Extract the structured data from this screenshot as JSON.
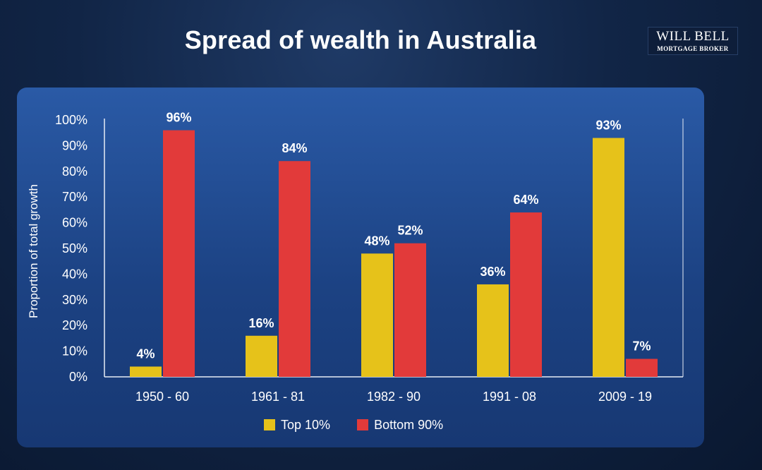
{
  "title": "Spread of wealth in Australia",
  "logo": {
    "line1": "WILL BELL",
    "line2": "MORTGAGE BROKER"
  },
  "colors": {
    "top10": "#e6c21a",
    "bottom90": "#e23a3a",
    "panel": "#1f4a90",
    "axis": "#e6ecf5",
    "text": "#ffffff"
  },
  "chart_data": {
    "type": "bar",
    "title": "Spread of wealth in Australia",
    "xlabel": "",
    "ylabel": "Proportion of total growth",
    "ylim": [
      0,
      100
    ],
    "yticks": [
      "0%",
      "10%",
      "20%",
      "30%",
      "40%",
      "50%",
      "60%",
      "70%",
      "80%",
      "90%",
      "100%"
    ],
    "categories": [
      "1950 - 60",
      "1961 - 81",
      "1982 - 90",
      "1991 - 08",
      "2009 - 19"
    ],
    "series": [
      {
        "name": "Top 10%",
        "values": [
          4,
          16,
          48,
          36,
          93
        ],
        "labels": [
          "4%",
          "16%",
          "48%",
          "36%",
          "93%"
        ],
        "color": "#e6c21a"
      },
      {
        "name": "Bottom 90%",
        "values": [
          96,
          84,
          52,
          64,
          7
        ],
        "labels": [
          "96%",
          "84%",
          "52%",
          "64%",
          "7%"
        ],
        "color": "#e23a3a"
      }
    ],
    "grid": false,
    "legend": "bottom-center"
  }
}
